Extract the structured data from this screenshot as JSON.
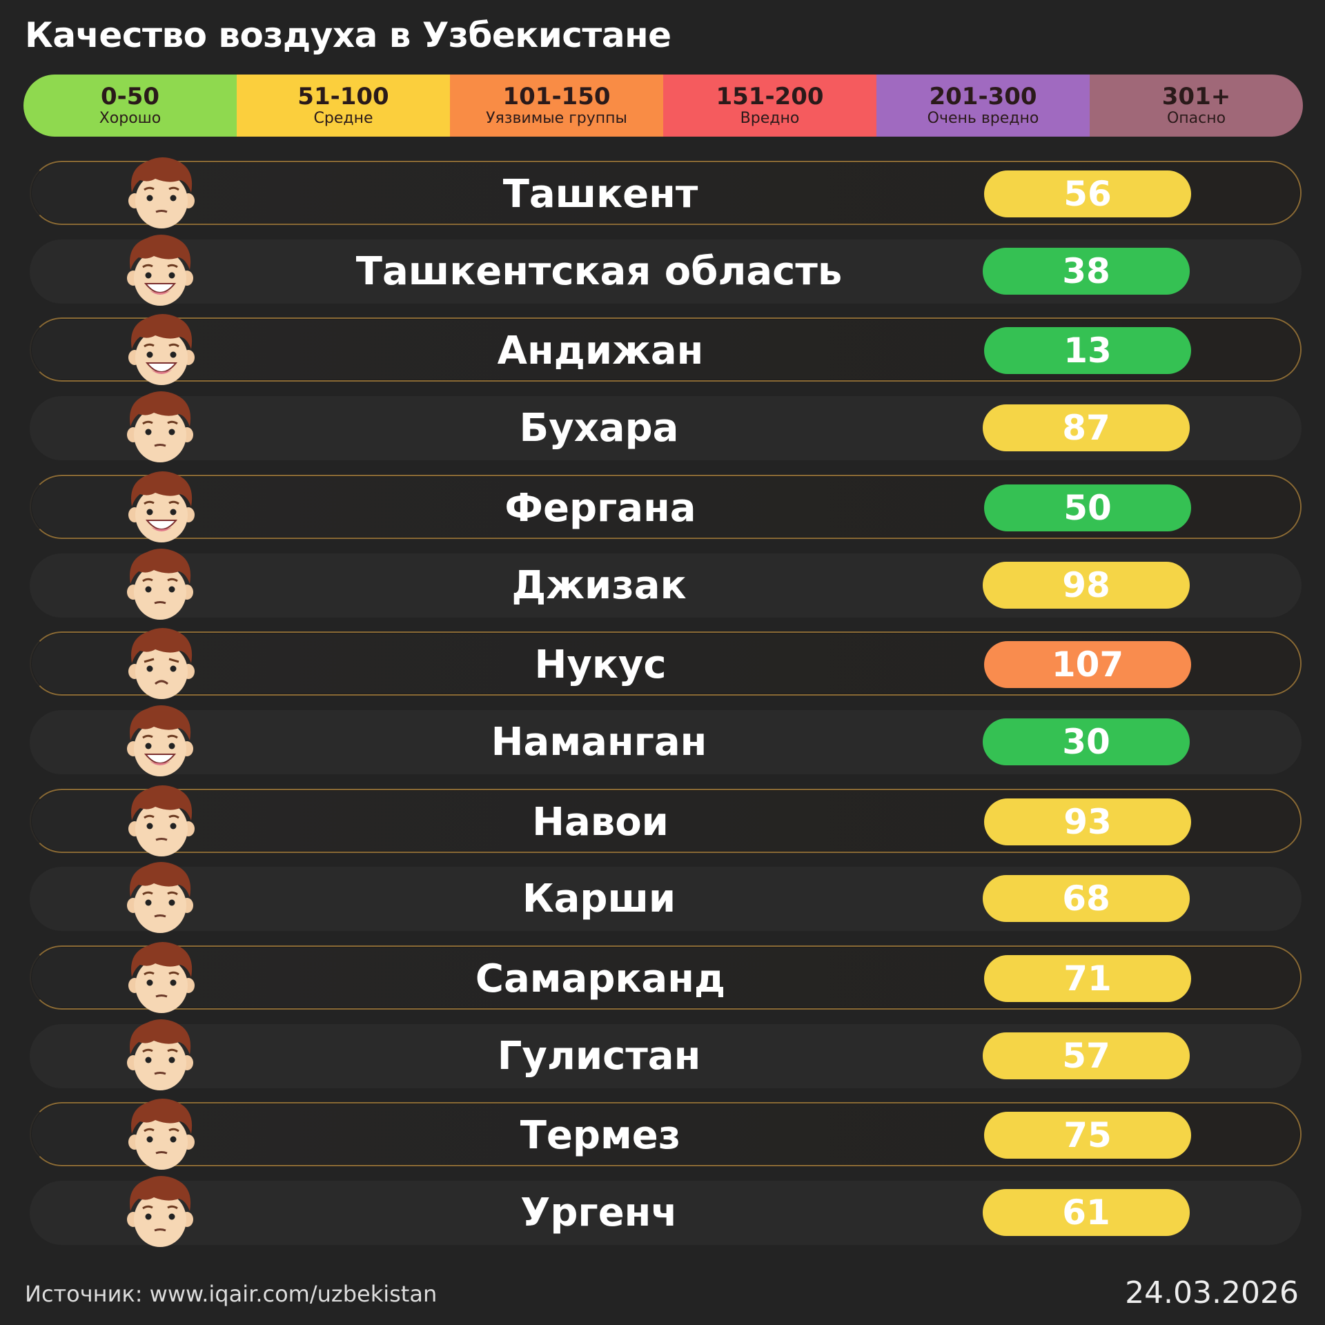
{
  "title": "Качество воздуха в Узбекистане",
  "legend": [
    {
      "range": "0-50",
      "label": "Хорошо",
      "color": "#8fd94f"
    },
    {
      "range": "51-100",
      "label": "Средне",
      "color": "#fbcf3d"
    },
    {
      "range": "101-150",
      "label": "Уязвимые группы",
      "color": "#f98c45"
    },
    {
      "range": "151-200",
      "label": "Вредно",
      "color": "#f55b5e"
    },
    {
      "range": "201-300",
      "label": "Очень вредно",
      "color": "#a06ac0"
    },
    {
      "range": "301+",
      "label": "Опасно",
      "color": "#a06878"
    }
  ],
  "status_colors": {
    "good": "#35c153",
    "moderate": "#f5d547",
    "sensitive": "#f98c4e"
  },
  "cities": [
    {
      "name": "Ташкент",
      "aqi": "56",
      "status": "moderate",
      "face": "neutral"
    },
    {
      "name": "Ташкентская область",
      "aqi": "38",
      "status": "good",
      "face": "happy"
    },
    {
      "name": "Андижан",
      "aqi": "13",
      "status": "good",
      "face": "happy"
    },
    {
      "name": "Бухара",
      "aqi": "87",
      "status": "moderate",
      "face": "neutral"
    },
    {
      "name": "Фергана",
      "aqi": "50",
      "status": "good",
      "face": "happy"
    },
    {
      "name": "Джизак",
      "aqi": "98",
      "status": "moderate",
      "face": "neutral"
    },
    {
      "name": "Нукус",
      "aqi": "107",
      "status": "sensitive",
      "face": "sad"
    },
    {
      "name": "Наманган",
      "aqi": "30",
      "status": "good",
      "face": "happy"
    },
    {
      "name": "Навои",
      "aqi": "93",
      "status": "moderate",
      "face": "neutral"
    },
    {
      "name": "Карши",
      "aqi": "68",
      "status": "moderate",
      "face": "neutral"
    },
    {
      "name": "Самарканд",
      "aqi": "71",
      "status": "moderate",
      "face": "neutral"
    },
    {
      "name": "Гулистан",
      "aqi": "57",
      "status": "moderate",
      "face": "neutral"
    },
    {
      "name": "Термез",
      "aqi": "75",
      "status": "moderate",
      "face": "neutral"
    },
    {
      "name": "Ургенч",
      "aqi": "61",
      "status": "moderate",
      "face": "neutral"
    }
  ],
  "footer": {
    "source": "Источник: www.iqair.com/uzbekistan",
    "date": "24.03.2026"
  }
}
